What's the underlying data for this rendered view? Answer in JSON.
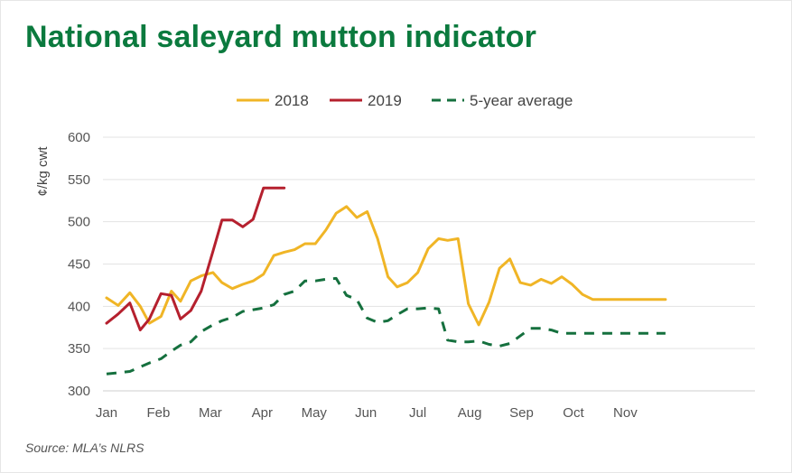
{
  "title": "National saleyard mutton indicator",
  "source": "Source: MLA’s NLRS",
  "chart_data": {
    "type": "line",
    "title": "National saleyard mutton indicator",
    "xlabel": "",
    "ylabel": "¢/kg cwt",
    "ylim": [
      300,
      600
    ],
    "yticks": [
      300,
      350,
      400,
      450,
      500,
      550,
      600
    ],
    "xlim": [
      0,
      48
    ],
    "xticks": [
      {
        "label": "Jan",
        "x": 0
      },
      {
        "label": "Feb",
        "x": 4
      },
      {
        "label": "Mar",
        "x": 8
      },
      {
        "label": "Apr",
        "x": 12
      },
      {
        "label": "May",
        "x": 16
      },
      {
        "label": "Jun",
        "x": 20
      },
      {
        "label": "Jul",
        "x": 24
      },
      {
        "label": "Aug",
        "x": 28
      },
      {
        "label": "Sep",
        "x": 32
      },
      {
        "label": "Oct",
        "x": 36
      },
      {
        "label": "Nov",
        "x": 40
      }
    ],
    "grid": true,
    "legend_position": "top",
    "series": [
      {
        "name": "2018",
        "color": "#f0b526",
        "style": "solid",
        "x": [
          0,
          0.9,
          1.8,
          2.6,
          3.3,
          4.2,
          5.0,
          5.7,
          6.5,
          7.3,
          8.2,
          8.9,
          9.7,
          10.5,
          11.3,
          12.1,
          12.9,
          13.7,
          14.5,
          15.3,
          16.1,
          16.9,
          17.7,
          18.5,
          19.3,
          20.1,
          20.9,
          21.7,
          22.4,
          23.2,
          24.0,
          24.8,
          25.6,
          26.3,
          27.1,
          27.9,
          28.7,
          29.5,
          30.3,
          31.1,
          31.9,
          32.7,
          33.5,
          34.3,
          35.1,
          35.9,
          36.7,
          37.5,
          38.3,
          39.1,
          39.9,
          40.7,
          41.5,
          42.3,
          43.1
        ],
        "y": [
          410,
          401,
          416,
          400,
          380,
          388,
          418,
          406,
          430,
          436,
          440,
          428,
          421,
          426,
          430,
          438,
          460,
          464,
          467,
          474,
          474,
          490,
          510,
          518,
          505,
          512,
          480,
          435,
          423,
          428,
          440,
          468,
          480,
          478,
          480,
          403,
          378,
          405,
          445,
          456,
          428,
          425,
          432,
          427,
          435,
          426,
          414,
          408,
          408,
          408,
          408,
          408,
          408,
          408,
          408
        ]
      },
      {
        "name": "2019",
        "color": "#b5202e",
        "style": "solid",
        "x": [
          0,
          0.9,
          1.8,
          2.6,
          3.3,
          4.2,
          5.0,
          5.7,
          6.5,
          7.3,
          8.2,
          8.9,
          9.7,
          10.5,
          11.3,
          12.1,
          12.9,
          13.7
        ],
        "y": [
          380,
          391,
          404,
          372,
          385,
          415,
          413,
          385,
          395,
          418,
          465,
          502,
          502,
          494,
          503,
          540,
          540,
          540
        ]
      },
      {
        "name": "5-year average",
        "color": "#15703e",
        "style": "dashed",
        "x": [
          0,
          1.8,
          3.3,
          4.2,
          5.0,
          5.7,
          6.5,
          7.3,
          8.2,
          8.9,
          9.7,
          10.5,
          11.3,
          12.1,
          12.9,
          13.7,
          14.5,
          15.3,
          16.1,
          16.9,
          17.7,
          18.5,
          19.3,
          20.1,
          20.9,
          21.7,
          22.4,
          23.2,
          24.0,
          24.8,
          25.6,
          26.3,
          27.1,
          27.9,
          28.7,
          29.5,
          30.3,
          31.1,
          31.9,
          32.7,
          33.5,
          34.3,
          35.1,
          35.9,
          36.7,
          37.5,
          38.3,
          39.1,
          39.9,
          40.7,
          41.5,
          42.3,
          43.1
        ],
        "y": [
          320,
          323,
          333,
          338,
          347,
          354,
          358,
          370,
          378,
          383,
          387,
          394,
          396,
          398,
          402,
          414,
          418,
          430,
          430,
          432,
          433,
          413,
          408,
          386,
          381,
          383,
          390,
          397,
          397,
          398,
          397,
          360,
          358,
          358,
          359,
          355,
          353,
          356,
          365,
          374,
          374,
          372,
          368,
          368,
          368,
          368,
          368,
          368,
          368,
          368,
          368,
          368,
          368
        ]
      }
    ]
  }
}
